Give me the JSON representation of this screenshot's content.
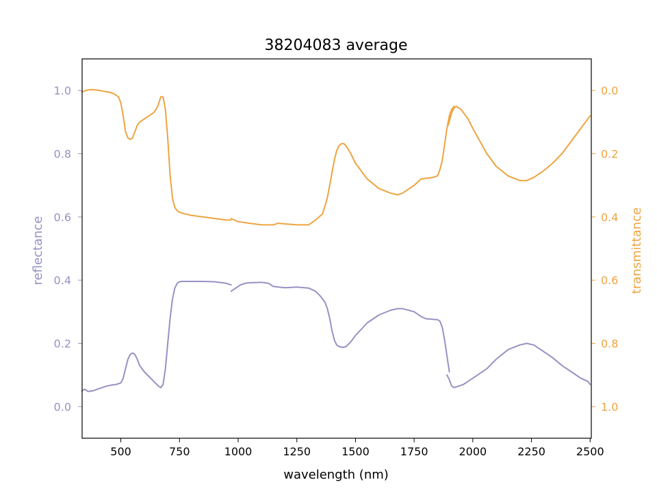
{
  "chart_data": {
    "type": "line",
    "title": "38204083 average",
    "xlabel": "wavelength (nm)",
    "ylabel_left": "reflectance",
    "ylabel_right": "transmittance",
    "xlim": [
      335,
      2505
    ],
    "ylim_left": [
      -0.1,
      1.1
    ],
    "ylim_right": [
      1.1,
      -0.1
    ],
    "right_axis_inverted": true,
    "grid": false,
    "x_ticks": [
      500,
      750,
      1000,
      1250,
      1500,
      1750,
      2000,
      2250,
      2500
    ],
    "y_ticks_left": [
      0.0,
      0.2,
      0.4,
      0.6,
      0.8,
      1.0
    ],
    "y_ticks_left_labels": [
      "0.0",
      "0.2",
      "0.4",
      "0.6",
      "0.8",
      "1.0"
    ],
    "y_ticks_right": [
      0.0,
      0.2,
      0.4,
      0.6,
      0.8,
      1.0
    ],
    "y_ticks_right_labels": [
      "0.0",
      "0.2",
      "0.4",
      "0.6",
      "0.8",
      "1.0"
    ],
    "colors": {
      "reflectance": "#9591c4",
      "transmittance": "#eea340"
    },
    "series": [
      {
        "axis": "left",
        "color": "#9591c4",
        "segments": [
          {
            "x": [
              335,
              345,
              360,
              380,
              400,
              420,
              440,
              460,
              480,
              500,
              510,
              520,
              530,
              540,
              550,
              560,
              570,
              580,
              590,
              600,
              620,
              640,
              660,
              670,
              680,
              690,
              700,
              710,
              720,
              730,
              740,
              750,
              760,
              780,
              800,
              850,
              900,
              950,
              970
            ],
            "y": [
              0.05,
              0.055,
              0.048,
              0.05,
              0.055,
              0.06,
              0.065,
              0.068,
              0.07,
              0.075,
              0.09,
              0.12,
              0.15,
              0.165,
              0.17,
              0.165,
              0.15,
              0.13,
              0.12,
              0.11,
              0.095,
              0.08,
              0.065,
              0.06,
              0.07,
              0.12,
              0.2,
              0.28,
              0.34,
              0.375,
              0.39,
              0.395,
              0.396,
              0.396,
              0.396,
              0.396,
              0.395,
              0.39,
              0.385
            ]
          },
          {
            "x": [
              970,
              990,
              1010,
              1030,
              1050,
              1100,
              1130,
              1150,
              1200,
              1250,
              1300,
              1330,
              1350,
              1370,
              1380,
              1390,
              1400,
              1410,
              1420,
              1430,
              1440,
              1450,
              1460,
              1480,
              1500,
              1550,
              1600,
              1650,
              1680,
              1700,
              1750,
              1780,
              1800,
              1830,
              1850,
              1860,
              1870,
              1880,
              1890,
              1900
            ],
            "y": [
              0.365,
              0.375,
              0.385,
              0.39,
              0.392,
              0.393,
              0.39,
              0.38,
              0.376,
              0.378,
              0.375,
              0.365,
              0.35,
              0.33,
              0.31,
              0.28,
              0.24,
              0.21,
              0.195,
              0.19,
              0.188,
              0.188,
              0.19,
              0.205,
              0.225,
              0.265,
              0.29,
              0.305,
              0.31,
              0.31,
              0.3,
              0.285,
              0.278,
              0.276,
              0.275,
              0.27,
              0.25,
              0.21,
              0.16,
              0.11
            ]
          },
          {
            "x": [
              1890,
              1900,
              1910,
              1920,
              1940,
              1960,
              1980,
              2000,
              2030,
              2060,
              2100,
              2150,
              2200,
              2230,
              2260,
              2300,
              2340,
              2380,
              2420,
              2460,
              2490,
              2500
            ],
            "y": [
              0.1,
              0.085,
              0.065,
              0.06,
              0.065,
              0.07,
              0.08,
              0.09,
              0.105,
              0.12,
              0.15,
              0.18,
              0.195,
              0.2,
              0.195,
              0.175,
              0.155,
              0.13,
              0.11,
              0.09,
              0.08,
              0.07
            ]
          }
        ]
      },
      {
        "axis": "right",
        "color": "#eea340",
        "segments": [
          {
            "x": [
              335,
              350,
              370,
              390,
              410,
              430,
              450,
              470,
              490,
              500,
              510,
              520,
              530,
              540,
              550,
              560,
              570,
              580,
              590,
              600,
              620,
              640,
              650,
              660,
              670,
              680,
              690,
              700,
              710,
              720,
              730,
              740,
              750,
              770,
              800,
              850,
              900,
              950,
              970
            ],
            "y": [
              0.005,
              0.0,
              -0.003,
              -0.002,
              0.0,
              0.003,
              0.005,
              0.01,
              0.02,
              0.04,
              0.08,
              0.13,
              0.15,
              0.155,
              0.15,
              0.13,
              0.11,
              0.1,
              0.095,
              0.09,
              0.08,
              0.07,
              0.06,
              0.045,
              0.02,
              0.02,
              0.06,
              0.15,
              0.27,
              0.34,
              0.37,
              0.38,
              0.385,
              0.39,
              0.395,
              0.4,
              0.405,
              0.41,
              0.41
            ]
          },
          {
            "x": [
              970,
              1000,
              1050,
              1100,
              1150,
              1170,
              1200,
              1250,
              1300,
              1330,
              1360,
              1380,
              1400,
              1410,
              1420,
              1430,
              1440,
              1450,
              1460,
              1480,
              1500,
              1550,
              1600,
              1650,
              1680,
              1700,
              1750,
              1780,
              1800,
              1830,
              1850,
              1860,
              1870,
              1880,
              1890,
              1900,
              1910,
              1920
            ],
            "y": [
              0.405,
              0.415,
              0.42,
              0.425,
              0.425,
              0.42,
              0.422,
              0.425,
              0.425,
              0.41,
              0.39,
              0.34,
              0.26,
              0.22,
              0.19,
              0.175,
              0.168,
              0.168,
              0.175,
              0.2,
              0.23,
              0.28,
              0.31,
              0.325,
              0.33,
              0.325,
              0.3,
              0.28,
              0.278,
              0.275,
              0.27,
              0.25,
              0.22,
              0.17,
              0.12,
              0.08,
              0.06,
              0.05
            ]
          },
          {
            "x": [
              1895,
              1910,
              1920,
              1930,
              1950,
              1980,
              2000,
              2030,
              2060,
              2100,
              2150,
              2200,
              2230,
              2260,
              2300,
              2340,
              2380,
              2420,
              2460,
              2490,
              2500
            ],
            "y": [
              0.11,
              0.07,
              0.055,
              0.05,
              0.06,
              0.09,
              0.12,
              0.16,
              0.2,
              0.24,
              0.27,
              0.285,
              0.285,
              0.275,
              0.255,
              0.23,
              0.2,
              0.16,
              0.12,
              0.09,
              0.08
            ]
          }
        ]
      }
    ]
  }
}
